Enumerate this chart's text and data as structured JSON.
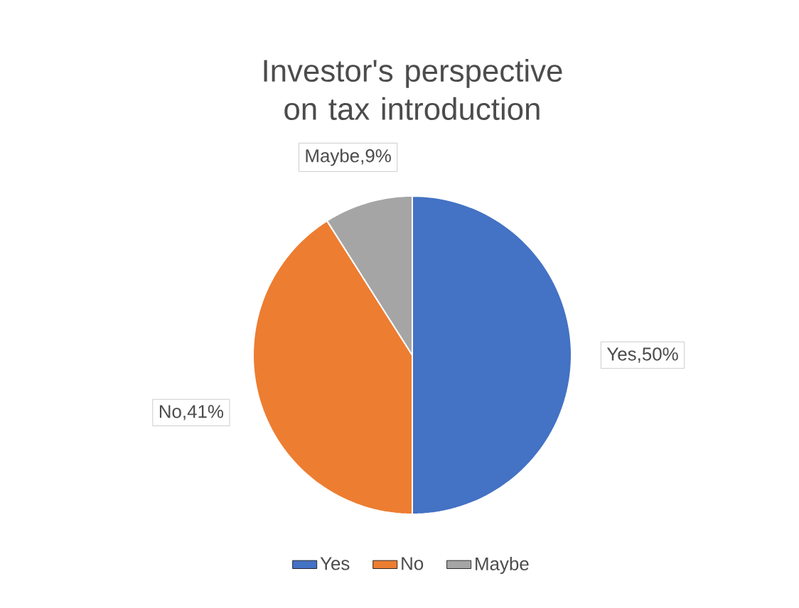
{
  "chart_data": {
    "type": "pie",
    "title": "Investor's perspective on tax introduction",
    "categories": [
      "Yes",
      "No",
      "Maybe"
    ],
    "values": [
      50,
      41,
      9
    ],
    "colors": [
      "#4472c4",
      "#ed7d31",
      "#a5a5a5"
    ],
    "value_labels": [
      "Yes,50%",
      "No,41%",
      "Maybe,9%"
    ],
    "legend": "bottom"
  }
}
